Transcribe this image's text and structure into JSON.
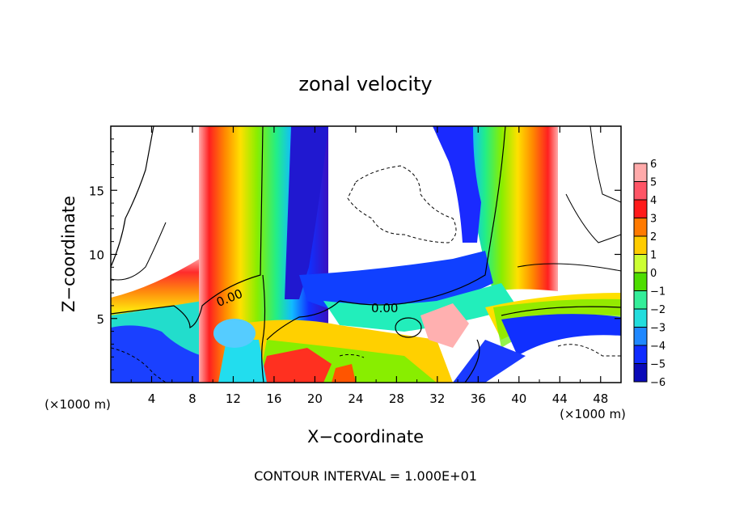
{
  "chart_data": {
    "type": "heatmap",
    "title": "zonal velocity",
    "xlabel": "X−coordinate",
    "ylabel": "Z−coordinate",
    "x_unit": "(×1000 m)",
    "footer": "CONTOUR INTERVAL = 1.000E+01",
    "xlim": [
      0,
      50
    ],
    "ylim": [
      0,
      20
    ],
    "x_ticks": [
      4,
      8,
      12,
      16,
      20,
      24,
      28,
      32,
      36,
      40,
      44,
      48
    ],
    "y_ticks": [
      5,
      10,
      15
    ],
    "contour_labels": [
      {
        "text": "0.00",
        "x": 11,
        "y": 6.6
      },
      {
        "text": "0.00",
        "x": 27,
        "y": 5.8
      }
    ],
    "colorbar": {
      "levels": [
        6,
        5,
        4,
        3,
        2,
        1,
        0,
        -1,
        -2,
        -3,
        -4,
        -5,
        -6
      ],
      "colors": [
        "#ffaaaa",
        "#ff5566",
        "#ff1a1a",
        "#ff7a00",
        "#ffcc00",
        "#ccff33",
        "#4ddd00",
        "#33ee99",
        "#22dddd",
        "#1f88ff",
        "#0f2cff",
        "#0a0ab8",
        "#7a00aa"
      ]
    }
  }
}
